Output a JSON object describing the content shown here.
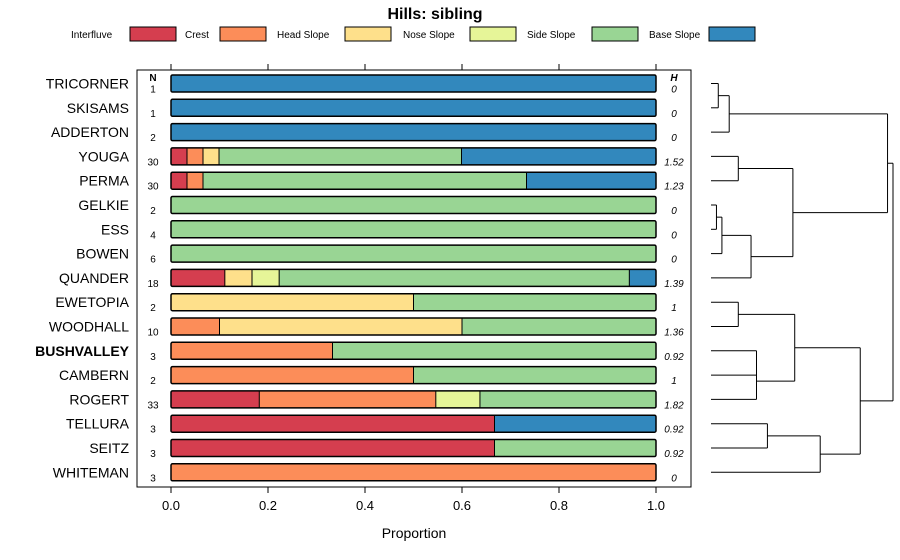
{
  "chart_data": {
    "type": "bar",
    "orientation": "horizontal",
    "stacked": true,
    "title": "Hills: sibling",
    "xlabel": "Proportion",
    "xlim": [
      0,
      1
    ],
    "xticks": [
      "0.0",
      "0.2",
      "0.4",
      "0.6",
      "0.8",
      "1.0"
    ],
    "n_header": "N",
    "h_header": "H",
    "legend_placement": "top",
    "series": [
      {
        "name": "Interfluve",
        "color": "#d53e4f"
      },
      {
        "name": "Crest",
        "color": "#fc8d59"
      },
      {
        "name": "Head Slope",
        "color": "#fee08b"
      },
      {
        "name": "Nose Slope",
        "color": "#e6f598"
      },
      {
        "name": "Side Slope",
        "color": "#99d594"
      },
      {
        "name": "Base Slope",
        "color": "#3288bd"
      }
    ],
    "categories": [
      {
        "name": "TRICORNER",
        "bold": false,
        "n": "1",
        "h": "0",
        "values": [
          0,
          0,
          0,
          0,
          0,
          1
        ]
      },
      {
        "name": "SKISAMS",
        "bold": false,
        "n": "1",
        "h": "0",
        "values": [
          0,
          0,
          0,
          0,
          0,
          1
        ]
      },
      {
        "name": "ADDERTON",
        "bold": false,
        "n": "2",
        "h": "0",
        "values": [
          0,
          0,
          0,
          0,
          0,
          1
        ]
      },
      {
        "name": "YOUGA",
        "bold": false,
        "n": "30",
        "h": "1.52",
        "values": [
          0.033,
          0.033,
          0.033,
          0,
          0.5,
          0.4
        ]
      },
      {
        "name": "PERMA",
        "bold": false,
        "n": "30",
        "h": "1.23",
        "values": [
          0.033,
          0.033,
          0,
          0,
          0.667,
          0.267
        ]
      },
      {
        "name": "GELKIE",
        "bold": false,
        "n": "2",
        "h": "0",
        "values": [
          0,
          0,
          0,
          0,
          1,
          0
        ]
      },
      {
        "name": "ESS",
        "bold": false,
        "n": "4",
        "h": "0",
        "values": [
          0,
          0,
          0,
          0,
          1,
          0
        ]
      },
      {
        "name": "BOWEN",
        "bold": false,
        "n": "6",
        "h": "0",
        "values": [
          0,
          0,
          0,
          0,
          1,
          0
        ]
      },
      {
        "name": "QUANDER",
        "bold": false,
        "n": "18",
        "h": "1.39",
        "values": [
          0.111,
          0,
          0.056,
          0.056,
          0.722,
          0.055
        ]
      },
      {
        "name": "EWETOPIA",
        "bold": false,
        "n": "2",
        "h": "1",
        "values": [
          0,
          0,
          0.5,
          0,
          0.5,
          0
        ]
      },
      {
        "name": "WOODHALL",
        "bold": false,
        "n": "10",
        "h": "1.36",
        "values": [
          0,
          0.1,
          0.5,
          0,
          0.4,
          0
        ]
      },
      {
        "name": "BUSHVALLEY",
        "bold": true,
        "n": "3",
        "h": "0.92",
        "values": [
          0,
          0.333,
          0,
          0,
          0.667,
          0
        ]
      },
      {
        "name": "CAMBERN",
        "bold": false,
        "n": "2",
        "h": "1",
        "values": [
          0,
          0.5,
          0,
          0,
          0.5,
          0
        ]
      },
      {
        "name": "ROGERT",
        "bold": false,
        "n": "33",
        "h": "1.82",
        "values": [
          0.182,
          0.364,
          0,
          0.091,
          0.363,
          0
        ]
      },
      {
        "name": "TELLURA",
        "bold": false,
        "n": "3",
        "h": "0.92",
        "values": [
          0.667,
          0,
          0,
          0,
          0,
          0.333
        ]
      },
      {
        "name": "SEITZ",
        "bold": false,
        "n": "3",
        "h": "0.92",
        "values": [
          0.667,
          0,
          0,
          0,
          0.333,
          0
        ]
      },
      {
        "name": "WHITEMAN",
        "bold": false,
        "n": "3",
        "h": "0",
        "values": [
          0,
          1,
          0,
          0,
          0,
          0
        ]
      }
    ],
    "dendrogram": {
      "leaf_order": [
        "TRICORNER",
        "SKISAMS",
        "ADDERTON",
        "YOUGA",
        "PERMA",
        "GELKIE",
        "ESS",
        "BOWEN",
        "QUANDER",
        "EWETOPIA",
        "WOODHALL",
        "BUSHVALLEY",
        "CAMBERN",
        "ROGERT",
        "TELLURA",
        "SEITZ",
        "WHITEMAN"
      ],
      "merges": [
        [
          0,
          1,
          0.04
        ],
        [
          -1,
          2,
          0.1
        ],
        [
          3,
          4,
          0.15
        ],
        [
          5,
          6,
          0.03
        ],
        [
          -4,
          7,
          0.06
        ],
        [
          -5,
          8,
          0.22
        ],
        [
          -3,
          -6,
          0.45
        ],
        [
          -2,
          -7,
          0.97
        ],
        [
          9,
          10,
          0.15
        ],
        [
          11,
          12,
          0.25
        ],
        [
          -10,
          13,
          0.25
        ],
        [
          -9,
          -11,
          0.46
        ],
        [
          14,
          15,
          0.31
        ],
        [
          -13,
          16,
          0.6
        ],
        [
          -12,
          -14,
          0.82
        ],
        [
          -8,
          -15,
          1.0
        ]
      ]
    }
  }
}
